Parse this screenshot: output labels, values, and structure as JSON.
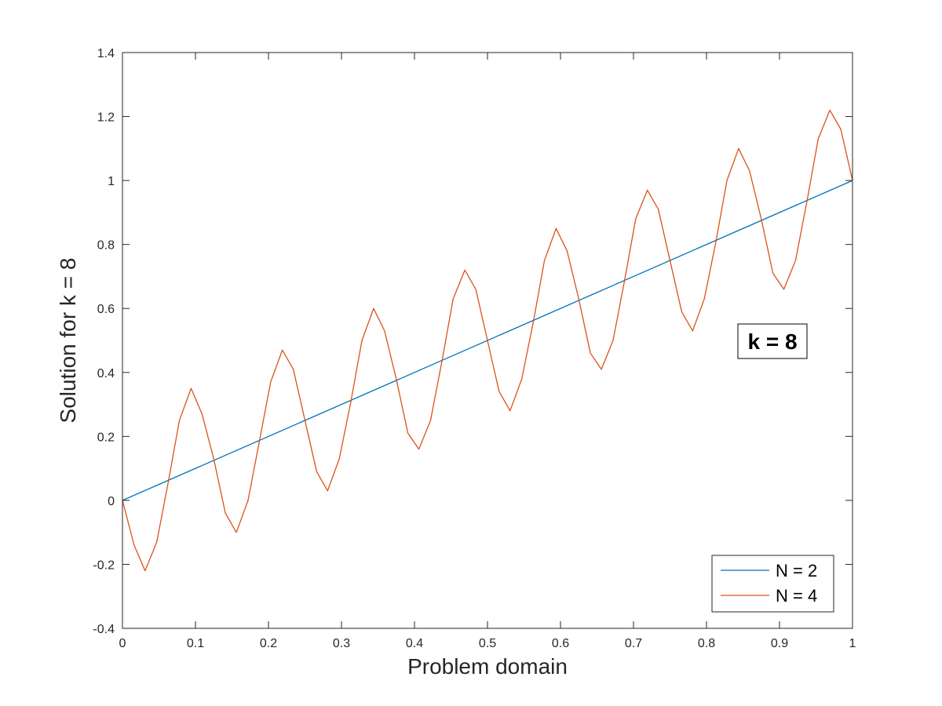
{
  "chart_data": {
    "type": "line",
    "title": "",
    "xlabel": "Problem domain",
    "ylabel": "Solution for k = 8",
    "xlim": [
      0,
      1
    ],
    "ylim": [
      -0.4,
      1.4
    ],
    "xticks": [
      0,
      0.1,
      0.2,
      0.3,
      0.4,
      0.5,
      0.6,
      0.7,
      0.8,
      0.9,
      1
    ],
    "xtick_labels": [
      "0",
      "0.1",
      "0.2",
      "0.3",
      "0.4",
      "0.5",
      "0.6",
      "0.7",
      "0.8",
      "0.9",
      "1"
    ],
    "yticks": [
      -0.4,
      -0.2,
      0,
      0.2,
      0.4,
      0.6,
      0.8,
      1,
      1.2,
      1.4
    ],
    "ytick_labels": [
      "-0.4",
      "-0.2",
      "0",
      "0.2",
      "0.4",
      "0.6",
      "0.8",
      "1",
      "1.2",
      "1.4"
    ],
    "grid": false,
    "legend_position": "bottom-right",
    "annotation": "k = 8",
    "series": [
      {
        "name": "N = 2",
        "color": "#0072BD",
        "x": [
          0,
          1
        ],
        "y": [
          0,
          1
        ]
      },
      {
        "name": "N = 4",
        "color": "#D95319",
        "x": [
          0,
          0.016,
          0.031,
          0.047,
          0.063,
          0.078,
          0.094,
          0.109,
          0.125,
          0.141,
          0.156,
          0.172,
          0.188,
          0.203,
          0.219,
          0.234,
          0.25,
          0.266,
          0.281,
          0.297,
          0.313,
          0.328,
          0.344,
          0.359,
          0.375,
          0.391,
          0.406,
          0.422,
          0.438,
          0.453,
          0.469,
          0.484,
          0.5,
          0.516,
          0.531,
          0.547,
          0.563,
          0.578,
          0.594,
          0.609,
          0.625,
          0.641,
          0.656,
          0.672,
          0.688,
          0.703,
          0.719,
          0.734,
          0.75,
          0.766,
          0.781,
          0.797,
          0.813,
          0.828,
          0.844,
          0.859,
          0.875,
          0.891,
          0.906,
          0.922,
          0.938,
          0.953,
          0.969,
          0.984,
          1
        ],
        "y": [
          0,
          -0.14,
          -0.22,
          -0.13,
          0.06,
          0.25,
          0.35,
          0.27,
          0.13,
          -0.04,
          -0.1,
          0.0,
          0.19,
          0.37,
          0.47,
          0.41,
          0.25,
          0.09,
          0.03,
          0.13,
          0.31,
          0.5,
          0.6,
          0.53,
          0.38,
          0.21,
          0.16,
          0.25,
          0.44,
          0.63,
          0.72,
          0.66,
          0.5,
          0.34,
          0.28,
          0.38,
          0.56,
          0.75,
          0.85,
          0.78,
          0.63,
          0.46,
          0.41,
          0.5,
          0.69,
          0.88,
          0.97,
          0.91,
          0.75,
          0.59,
          0.53,
          0.63,
          0.81,
          1.0,
          1.1,
          1.03,
          0.88,
          0.71,
          0.66,
          0.75,
          0.94,
          1.13,
          1.22,
          1.16,
          1.0
        ]
      }
    ]
  }
}
